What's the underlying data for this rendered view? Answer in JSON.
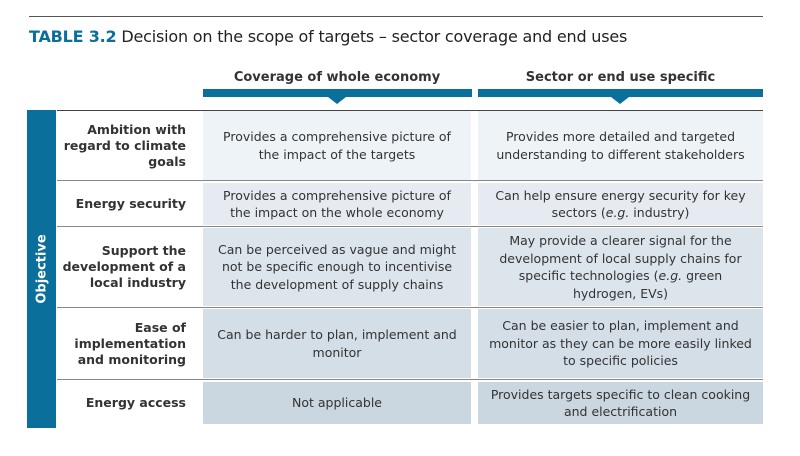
{
  "title": {
    "number": "TABLE 3.2",
    "text": " Decision on the scope of targets – sector coverage and end uses"
  },
  "columns": [
    "Coverage of whole economy",
    "Sector or end use specific"
  ],
  "side_label": "Objective",
  "rows": [
    {
      "label": "Ambition with regard to climate goals",
      "c1": [
        "Provides a comprehensive picture of the impact of the targets"
      ],
      "c2": [
        "Provides more detailed and targeted understanding to different stakeholders"
      ]
    },
    {
      "label": "Energy security",
      "c1": [
        "Provides a comprehensive picture of the impact on the whole economy"
      ],
      "c2": [
        "Can help ensure energy security for key sectors (",
        "e.g.",
        " industry)"
      ]
    },
    {
      "label": "Support the development of a local industry",
      "c1": [
        "Can be perceived as vague and might not be specific enough to incentivise the development of supply chains"
      ],
      "c2": [
        "May provide a clearer signal for the development of local supply chains for specific technologies (",
        "e.g.",
        " green hydrogen, EVs)"
      ]
    },
    {
      "label": "Ease of implementation and monitoring",
      "c1": [
        "Can be harder to plan, implement and monitor"
      ],
      "c2": [
        "Can be easier to plan, implement and monitor as they can be more easily linked to specific policies"
      ]
    },
    {
      "label": "Energy access",
      "c1": [
        "Not applicable"
      ],
      "c2": [
        "Provides targets specific to clean cooking and electrification"
      ]
    }
  ],
  "colors": {
    "accent": "#0b6f9b",
    "row_bg": [
      "#eef3f7",
      "#e5ebf1",
      "#dde5ec",
      "#d4dee7",
      "#cad6e0"
    ]
  }
}
